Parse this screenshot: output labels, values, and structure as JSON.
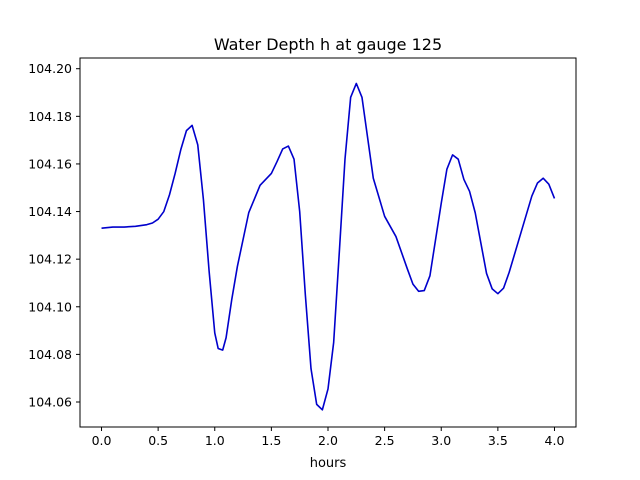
{
  "chart_data": {
    "type": "line",
    "title": "Water Depth h at gauge 125",
    "xlabel": "hours",
    "ylabel": "",
    "xlim": [
      -0.19,
      4.19
    ],
    "ylim": [
      104.0495,
      104.2045
    ],
    "x_ticks": [
      0.0,
      0.5,
      1.0,
      1.5,
      2.0,
      2.5,
      3.0,
      3.5,
      4.0
    ],
    "x_tick_labels": [
      "0.0",
      "0.5",
      "1.0",
      "1.5",
      "2.0",
      "2.5",
      "3.0",
      "3.5",
      "4.0"
    ],
    "y_ticks": [
      104.06,
      104.08,
      104.1,
      104.12,
      104.14,
      104.16,
      104.18,
      104.2
    ],
    "y_tick_labels": [
      "104.06",
      "104.08",
      "104.10",
      "104.12",
      "104.14",
      "104.16",
      "104.18",
      "104.20"
    ],
    "grid": false,
    "colors": {
      "line": "#0000cc",
      "axes": "#000000"
    },
    "series": [
      {
        "x": [
          0.0,
          0.1,
          0.2,
          0.3,
          0.4,
          0.45,
          0.5,
          0.55,
          0.6,
          0.65,
          0.7,
          0.75,
          0.8,
          0.85,
          0.9,
          0.95,
          1.0,
          1.03,
          1.07,
          1.1,
          1.15,
          1.2,
          1.3,
          1.4,
          1.5,
          1.55,
          1.6,
          1.65,
          1.7,
          1.75,
          1.8,
          1.85,
          1.9,
          1.95,
          2.0,
          2.05,
          2.1,
          2.15,
          2.2,
          2.25,
          2.3,
          2.35,
          2.4,
          2.5,
          2.6,
          2.7,
          2.75,
          2.8,
          2.85,
          2.9,
          3.0,
          3.05,
          3.1,
          3.15,
          3.2,
          3.25,
          3.3,
          3.4,
          3.45,
          3.5,
          3.55,
          3.6,
          3.7,
          3.8,
          3.85,
          3.9,
          3.95,
          4.0
        ],
        "y": [
          104.133,
          104.1335,
          104.1335,
          104.1338,
          104.1345,
          104.1352,
          104.1368,
          104.14,
          104.147,
          104.156,
          104.166,
          104.174,
          104.1762,
          104.168,
          104.145,
          104.115,
          104.089,
          104.0825,
          104.0818,
          104.087,
          104.103,
          104.117,
          104.1395,
          104.151,
          104.156,
          104.161,
          104.1663,
          104.1675,
          104.162,
          104.14,
          104.105,
          104.074,
          104.059,
          104.0567,
          104.0655,
          104.085,
          104.123,
          104.162,
          104.188,
          104.1938,
          104.188,
          104.171,
          104.154,
          104.138,
          104.1295,
          104.116,
          104.1095,
          104.1065,
          104.1068,
          104.113,
          104.1435,
          104.1578,
          104.1638,
          104.162,
          104.1535,
          104.1485,
          104.1395,
          104.114,
          104.1075,
          104.1055,
          104.1078,
          104.1145,
          104.1305,
          104.1465,
          104.152,
          104.154,
          104.1515,
          104.1455
        ]
      }
    ]
  }
}
